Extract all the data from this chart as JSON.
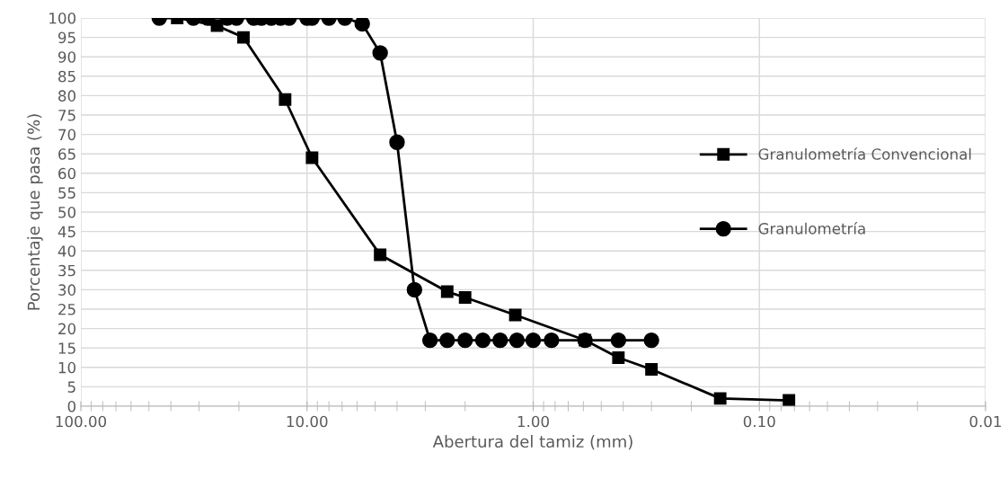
{
  "chart_data": {
    "type": "line",
    "xlabel": "Abertura del tamiz (mm)",
    "ylabel": "Porcentaje que pasa (%)",
    "log": "x",
    "xlim": [
      100,
      0.01
    ],
    "xticks": [
      {
        "value": 100,
        "label": "100.00"
      },
      {
        "value": 10,
        "label": "10.00"
      },
      {
        "value": 1,
        "label": "1.00"
      },
      {
        "value": 0.1,
        "label": "0.10"
      },
      {
        "value": 0.01,
        "label": "0.01"
      }
    ],
    "ylim": [
      0,
      100
    ],
    "yticks": [
      0,
      5,
      10,
      15,
      20,
      25,
      30,
      35,
      40,
      45,
      50,
      55,
      60,
      65,
      70,
      75,
      80,
      85,
      90,
      95,
      100
    ],
    "grid": true,
    "legend": "right",
    "series": [
      {
        "name": "Granulometría Convencional",
        "color": "#000000",
        "marker": "square",
        "x": [
          37.5,
          25,
          19.1,
          12.5,
          9.5,
          4.75,
          2.4,
          2.0,
          1.2,
          0.59,
          0.42,
          0.3,
          0.149,
          0.074
        ],
        "values": [
          100,
          98,
          95,
          79,
          64,
          39,
          29.5,
          28,
          23.5,
          17,
          12.5,
          9.5,
          2,
          1.5
        ]
      },
      {
        "name": "Granulometría",
        "color": "#000000",
        "marker": "circle",
        "x": [
          45,
          31.8,
          27.5,
          22.5,
          20.5,
          17.2,
          15.9,
          14.4,
          13.1,
          12,
          10,
          9.5,
          8,
          6.8,
          5.7,
          4.75,
          4,
          3.35,
          2.86,
          2.4,
          2.0,
          1.67,
          1.4,
          1.18,
          1.0,
          0.83,
          0.59,
          0.42,
          0.3
        ],
        "values": [
          100,
          100,
          100,
          100,
          100,
          100,
          100,
          100,
          100,
          100,
          100,
          100,
          100,
          100,
          98.5,
          91,
          68,
          30,
          17,
          17,
          17,
          17,
          17,
          17,
          17,
          17,
          17,
          17,
          17
        ]
      }
    ]
  }
}
